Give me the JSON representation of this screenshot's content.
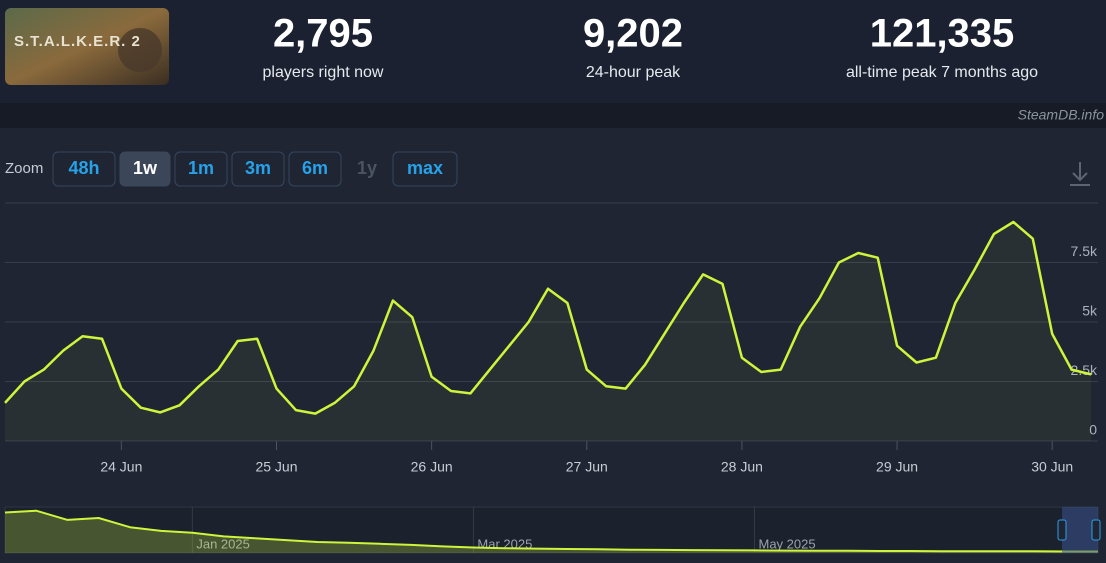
{
  "header": {
    "game_title": "S.T.A.L.K.E.R. 2",
    "stats": [
      {
        "value": "2,795",
        "caption": "players right now"
      },
      {
        "value": "9,202",
        "caption": "24-hour peak"
      },
      {
        "value": "121,335",
        "caption": "all-time peak 7 months ago"
      }
    ]
  },
  "watermark": "SteamDB.info",
  "zoom": {
    "label": "Zoom",
    "options": [
      "48h",
      "1w",
      "1m",
      "3m",
      "6m",
      "1y",
      "max"
    ],
    "active": "1w",
    "disabled": "1y"
  },
  "chart_data": [
    {
      "type": "line",
      "color": "#cdf53b",
      "categories": [
        null,
        null,
        null,
        null,
        null,
        null,
        "24 Jun",
        null,
        null,
        null,
        null,
        null,
        null,
        null,
        "25 Jun",
        null,
        null,
        null,
        null,
        null,
        null,
        null,
        "26 Jun",
        null,
        null,
        null,
        null,
        null,
        null,
        null,
        "27 Jun",
        null,
        null,
        null,
        null,
        null,
        null,
        null,
        "28 Jun",
        null,
        null,
        null,
        null,
        null,
        null,
        null,
        "29 Jun",
        null,
        null,
        null,
        null,
        null,
        null,
        null,
        "30 Jun",
        null,
        null
      ],
      "values": [
        1600,
        2500,
        3000,
        3800,
        4400,
        4300,
        2200,
        1400,
        1200,
        1500,
        2300,
        3000,
        4200,
        4300,
        2200,
        1300,
        1150,
        1600,
        2300,
        3800,
        5900,
        5200,
        2700,
        2100,
        2000,
        3000,
        4000,
        5000,
        6400,
        5800,
        3000,
        2300,
        2200,
        3200,
        4500,
        5800,
        7000,
        6600,
        3500,
        2900,
        3000,
        4800,
        6000,
        7500,
        7900,
        7700,
        4000,
        3300,
        3500,
        5800,
        7200,
        8700,
        9200,
        8500,
        4500,
        3000,
        2800
      ],
      "ylim": [
        0,
        10000
      ],
      "yticks": [
        0,
        {
          "value": 2500,
          "label": "2.5k"
        },
        {
          "value": 5000,
          "label": "5k"
        },
        {
          "value": 7500,
          "label": "7.5k"
        }
      ],
      "grid": true
    },
    {
      "type": "line",
      "color": "#cdf53b",
      "categories": [
        null,
        null,
        null,
        null,
        null,
        null,
        "Jan 2025",
        null,
        null,
        null,
        null,
        null,
        null,
        null,
        null,
        "Mar 2025",
        null,
        null,
        null,
        null,
        null,
        null,
        null,
        null,
        "May 2025",
        null,
        null,
        null,
        null,
        null,
        null,
        null,
        null,
        null,
        null,
        null
      ],
      "values": [
        110000,
        115000,
        90000,
        95000,
        70000,
        60000,
        55000,
        45000,
        40000,
        35000,
        30000,
        28000,
        25000,
        22000,
        18000,
        15000,
        13000,
        12000,
        11000,
        10000,
        9000,
        8500,
        8000,
        7500,
        7000,
        6500,
        6000,
        6000,
        5500,
        5500,
        5000,
        5000,
        4800,
        4500,
        4200,
        4000
      ],
      "ylim": [
        0,
        125000
      ]
    }
  ]
}
